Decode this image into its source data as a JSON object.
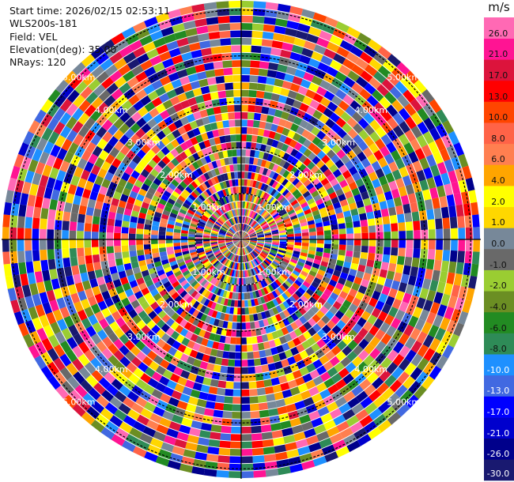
{
  "header": {
    "start_time": "Start time: 2026/02/15 02:53:11",
    "site": "WLS200s-181",
    "field": "Field: VEL",
    "elevation": "Elevation(deg): 35.00",
    "nrays": "NRays: 120"
  },
  "colorbar": {
    "unit": "m/s",
    "colors": [
      "#191970",
      "#00008b",
      "#0000cd",
      "#0000ff",
      "#4169e1",
      "#1e90ff",
      "#2e8b57",
      "#228b22",
      "#6b8e23",
      "#9acd32",
      "#696969",
      "#778899",
      "#ffd700",
      "#ffff00",
      "#ffa500",
      "#ff7f50",
      "#ff6347",
      "#ff4500",
      "#ff0000",
      "#dc143c",
      "#ff1493",
      "#ff69b4"
    ],
    "tick_labels": [
      "-30.0",
      "-26.0",
      "-21.0",
      "-17.0",
      "-13.0",
      "-10.0",
      "-8.0",
      "-6.0",
      "-4.0",
      "-2.0",
      "-1.0",
      "0.0",
      "1.0",
      "2.0",
      "4.0",
      "6.0",
      "8.0",
      "10.0",
      "13.0",
      "17.0",
      "21.0",
      "26.0"
    ]
  },
  "chart_data": {
    "type": "heatmap",
    "projection": "polar PPI",
    "field": "VEL",
    "units": "m/s",
    "elevation_deg": 35.0,
    "n_rays": 120,
    "n_gates": 32,
    "range_rings_km": [
      1,
      2,
      3,
      4,
      5
    ],
    "range_ring_labels": [
      "1.00km",
      "2.00km",
      "3.00km",
      "4.00km",
      "5.00km"
    ],
    "diagonal_azimuths_deg": [
      45,
      135,
      225,
      315
    ],
    "levels": [
      -30.0,
      -26.0,
      -21.0,
      -17.0,
      -13.0,
      -10.0,
      -8.0,
      -6.0,
      -4.0,
      -2.0,
      -1.0,
      0.0,
      1.0,
      2.0,
      4.0,
      6.0,
      8.0,
      10.0,
      13.0,
      17.0,
      21.0,
      26.0,
      30.0
    ],
    "data_note": "velocity field appears as random noise; per-cell values not legible",
    "crosshair": true
  }
}
